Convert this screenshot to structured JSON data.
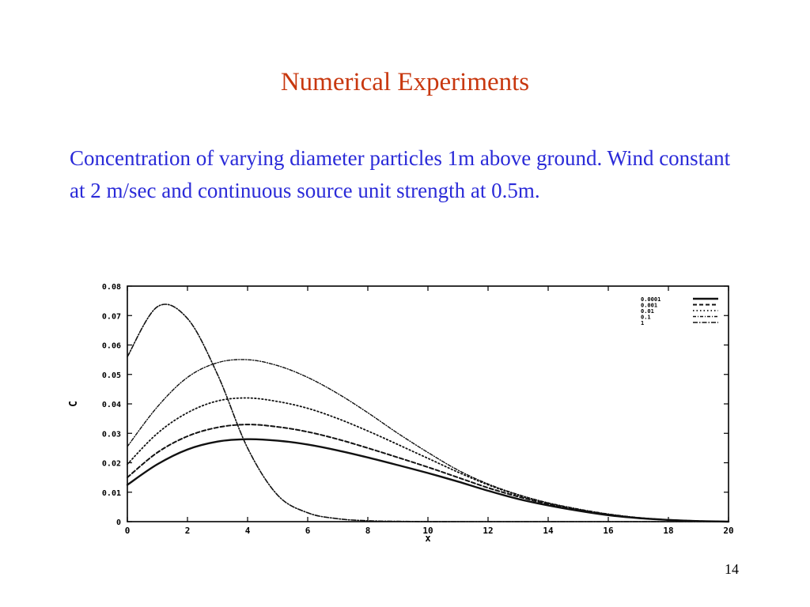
{
  "slide": {
    "title": "Numerical Experiments",
    "body": "Concentration of varying diameter particles 1m above ground.  Wind constant at 2 m/sec and continuous source unit strength at 0.5m.",
    "page_number": "14",
    "title_color": "#c8380f",
    "body_color": "#2a2ad8"
  },
  "chart_data": {
    "type": "line",
    "title": "",
    "xlabel": "x",
    "ylabel": "C",
    "xlim": [
      0,
      20
    ],
    "ylim": [
      0,
      0.08
    ],
    "x_ticks": [
      0,
      2,
      4,
      6,
      8,
      10,
      12,
      14,
      16,
      18,
      20
    ],
    "y_ticks": [
      0,
      0.01,
      0.02,
      0.03,
      0.04,
      0.05,
      0.06,
      0.07,
      0.08
    ],
    "y_tick_labels": [
      "0",
      "0.01",
      "0.02",
      "0.03",
      "0.04",
      "0.05",
      "0.06",
      "0.07",
      "0.08"
    ],
    "grid": false,
    "legend_position": "top-right",
    "x": [
      0,
      1,
      2,
      3,
      4,
      5,
      6,
      7,
      8,
      9,
      10,
      11,
      12,
      13,
      14,
      15,
      16,
      17,
      18,
      19,
      20
    ],
    "series": [
      {
        "name": "0.0001",
        "style": "solid-thick",
        "values": [
          0.0125,
          0.0195,
          0.0245,
          0.0272,
          0.028,
          0.0275,
          0.0262,
          0.0242,
          0.0218,
          0.0192,
          0.0165,
          0.0136,
          0.0105,
          0.0077,
          0.0055,
          0.0037,
          0.0022,
          0.0012,
          0.0006,
          0.0002,
          0.0
        ]
      },
      {
        "name": "0.001",
        "style": "dashed",
        "values": [
          0.015,
          0.0235,
          0.029,
          0.032,
          0.033,
          0.0322,
          0.0305,
          0.028,
          0.025,
          0.0218,
          0.0185,
          0.015,
          0.0115,
          0.0085,
          0.006,
          0.004,
          0.0024,
          0.0013,
          0.0006,
          0.0002,
          0.0
        ]
      },
      {
        "name": "0.01",
        "style": "dotted",
        "values": [
          0.0195,
          0.03,
          0.037,
          0.041,
          0.042,
          0.0408,
          0.0385,
          0.035,
          0.0308,
          0.0262,
          0.0215,
          0.0168,
          0.0125,
          0.009,
          0.0063,
          0.0042,
          0.0025,
          0.0013,
          0.0006,
          0.0002,
          0.0
        ]
      },
      {
        "name": "0.1",
        "style": "dash-dot-fine",
        "values": [
          0.0255,
          0.039,
          0.049,
          0.054,
          0.055,
          0.053,
          0.049,
          0.0435,
          0.037,
          0.03,
          0.0235,
          0.0175,
          0.0128,
          0.0092,
          0.0064,
          0.0043,
          0.0026,
          0.0014,
          0.0006,
          0.0002,
          0.0
        ]
      },
      {
        "name": "1",
        "style": "dash-dot",
        "values": [
          0.056,
          0.073,
          0.069,
          0.05,
          0.025,
          0.009,
          0.003,
          0.001,
          0.0003,
          0.0001,
          0.0,
          0.0,
          0.0,
          0.0,
          0.0,
          0.0,
          0.0,
          0.0,
          0.0,
          0.0,
          0.0
        ]
      }
    ]
  }
}
